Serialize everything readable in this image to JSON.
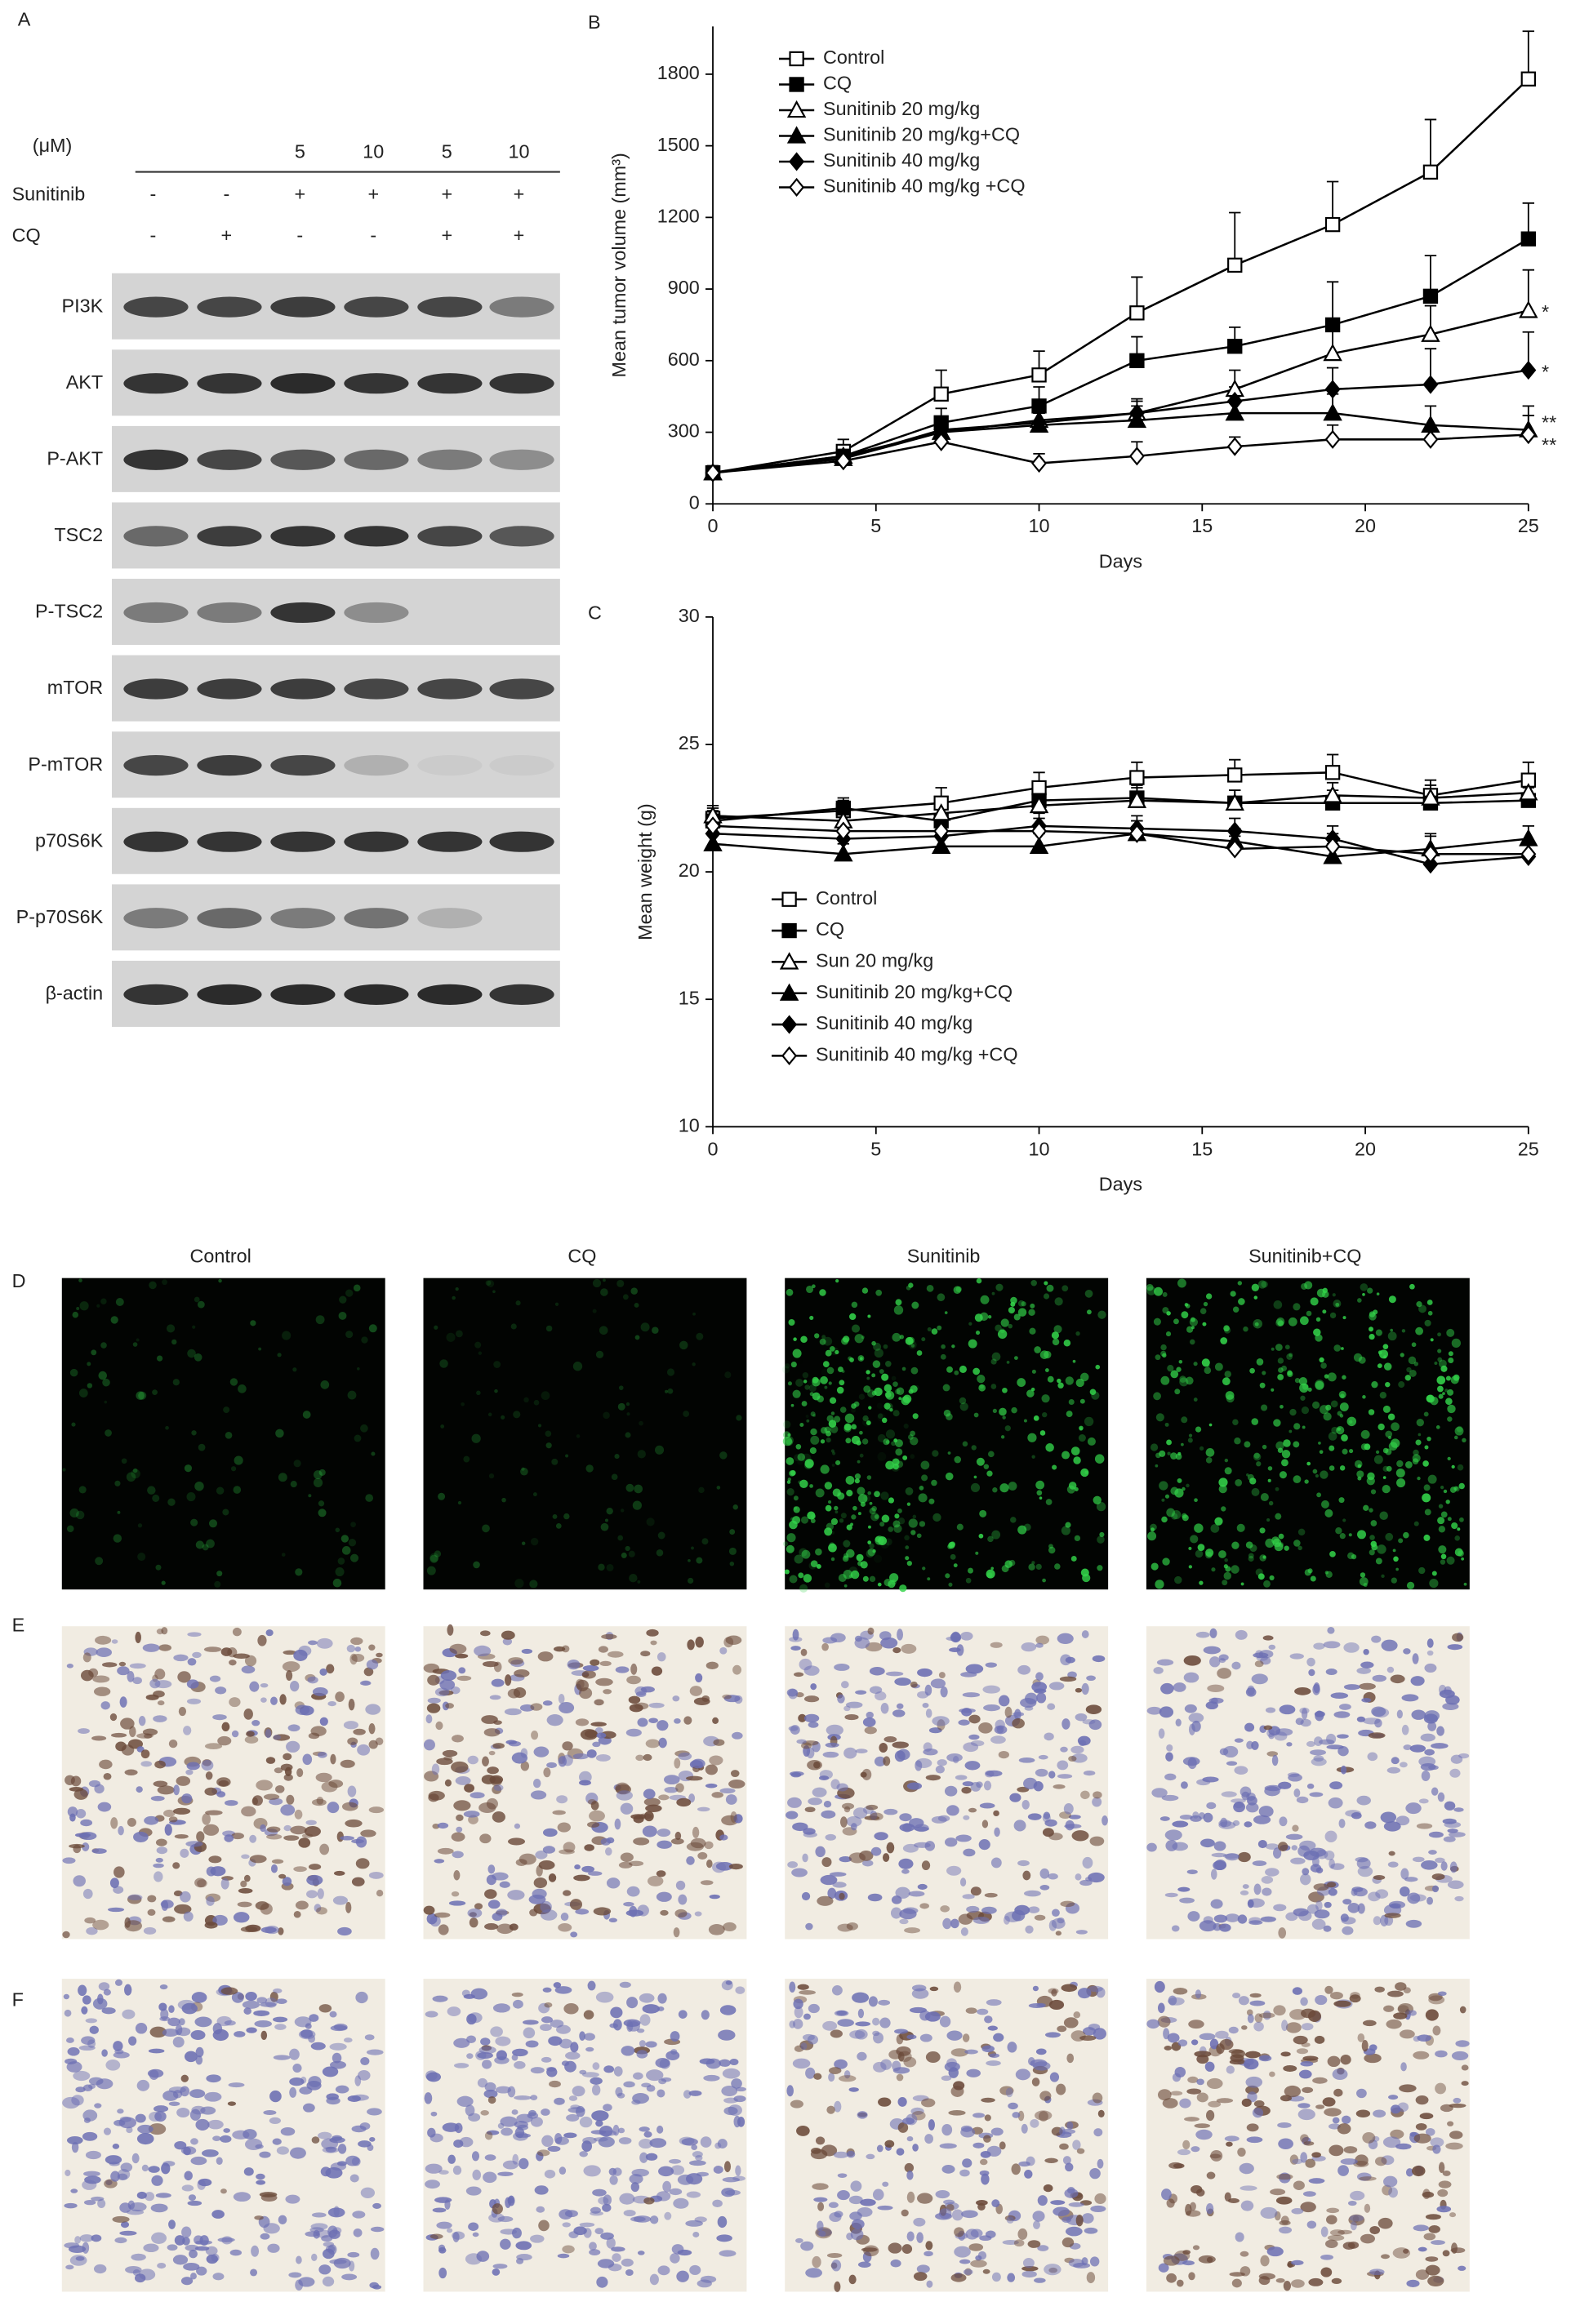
{
  "panel_a": {
    "label": "A",
    "unit": "(μM)",
    "doses": [
      "5",
      "10",
      "5",
      "10"
    ],
    "treatments": [
      {
        "name": "Sunitinib",
        "signs": [
          "-",
          "-",
          "+",
          "+",
          "+",
          "+"
        ]
      },
      {
        "name": "CQ",
        "signs": [
          "-",
          "+",
          "-",
          "-",
          "+",
          "+"
        ]
      }
    ],
    "proteins": [
      "PI3K",
      "AKT",
      "P-AKT",
      "TSC2",
      "P-TSC2",
      "mTOR",
      "P-mTOR",
      "p70S6K",
      "P-p70S6K",
      "β-actin"
    ]
  },
  "chart_data": [
    {
      "type": "line",
      "panel_label": "B",
      "x_label": "Days",
      "y_label": "Mean tumor volume (mm³)",
      "x": [
        0,
        4,
        7,
        10,
        13,
        16,
        19,
        22,
        25
      ],
      "xlim": [
        0,
        25
      ],
      "xticks": [
        0,
        5,
        10,
        15,
        20,
        25
      ],
      "ylim": [
        0,
        2000
      ],
      "yticks": [
        0,
        300,
        600,
        900,
        1200,
        1500,
        1800
      ],
      "legend": "upper left",
      "annotations": [
        "*",
        "*",
        "**",
        "**"
      ],
      "series": [
        {
          "name": "Control",
          "color": "#000000",
          "marker": "square-open",
          "values": [
            130,
            220,
            460,
            540,
            800,
            1000,
            1170,
            1390,
            1780
          ],
          "errors": [
            30,
            50,
            100,
            100,
            150,
            220,
            180,
            220,
            200
          ]
        },
        {
          "name": "CQ",
          "color": "#000000",
          "marker": "square-filled",
          "values": [
            130,
            200,
            340,
            410,
            600,
            660,
            750,
            870,
            1110
          ],
          "errors": [
            20,
            40,
            60,
            80,
            100,
            80,
            180,
            170,
            150
          ]
        },
        {
          "name": "Sunitinib 20 mg/kg",
          "color": "#000000",
          "marker": "triangle-open",
          "values": [
            130,
            200,
            300,
            350,
            380,
            480,
            630,
            710,
            810
          ],
          "errors": [
            20,
            30,
            40,
            50,
            60,
            80,
            100,
            120,
            170
          ]
        },
        {
          "name": "Sunitinib 20 mg/kg+CQ",
          "color": "#000000",
          "marker": "triangle-filled",
          "values": [
            130,
            190,
            300,
            330,
            350,
            380,
            380,
            330,
            310
          ],
          "errors": [
            20,
            30,
            40,
            50,
            60,
            70,
            80,
            80,
            100
          ]
        },
        {
          "name": "Sunitinib 40 mg/kg",
          "color": "#000000",
          "marker": "diamond-filled",
          "values": [
            130,
            190,
            310,
            340,
            380,
            430,
            480,
            500,
            560
          ],
          "errors": [
            20,
            30,
            40,
            40,
            50,
            60,
            90,
            150,
            160
          ]
        },
        {
          "name": "Sunitinib 40 mg/kg +CQ",
          "color": "#000000",
          "marker": "diamond-open",
          "values": [
            130,
            180,
            260,
            170,
            200,
            240,
            270,
            270,
            290
          ],
          "errors": [
            20,
            30,
            30,
            40,
            60,
            40,
            60,
            60,
            80
          ]
        }
      ]
    },
    {
      "type": "line",
      "panel_label": "C",
      "x_label": "Days",
      "y_label": "Mean weight (g)",
      "x": [
        0,
        4,
        7,
        10,
        13,
        16,
        19,
        22,
        25
      ],
      "xlim": [
        0,
        25
      ],
      "xticks": [
        0,
        5,
        10,
        15,
        20,
        25
      ],
      "ylim": [
        10,
        30
      ],
      "yticks": [
        10,
        15,
        20,
        25,
        30
      ],
      "legend": "lower left",
      "series": [
        {
          "name": "Control",
          "color": "#000000",
          "marker": "square-open",
          "values": [
            22.1,
            22.4,
            22.7,
            23.3,
            23.7,
            23.8,
            23.9,
            23.0,
            23.6
          ],
          "errors": [
            0.4,
            0.4,
            0.6,
            0.6,
            0.6,
            0.6,
            0.7,
            0.6,
            0.7
          ]
        },
        {
          "name": "CQ",
          "color": "#000000",
          "marker": "square-filled",
          "values": [
            22.0,
            22.5,
            22.0,
            22.8,
            22.9,
            22.7,
            22.7,
            22.7,
            22.8
          ],
          "errors": [
            0.4,
            0.4,
            0.5,
            0.5,
            0.5,
            0.5,
            0.5,
            0.5,
            0.5
          ]
        },
        {
          "name": "Sun 20 mg/kg",
          "color": "#000000",
          "marker": "triangle-open",
          "values": [
            22.2,
            22.0,
            22.3,
            22.6,
            22.8,
            22.7,
            23.0,
            22.9,
            23.1
          ],
          "errors": [
            0.4,
            0.4,
            0.5,
            0.5,
            0.5,
            0.5,
            0.5,
            0.5,
            0.5
          ]
        },
        {
          "name": "Sunitinib 20 mg/kg+CQ",
          "color": "#000000",
          "marker": "triangle-filled",
          "values": [
            21.1,
            20.7,
            21.0,
            21.0,
            21.5,
            21.2,
            20.6,
            20.9,
            21.3
          ],
          "errors": [
            0.4,
            0.4,
            0.5,
            0.5,
            0.5,
            0.5,
            0.5,
            0.5,
            0.5
          ]
        },
        {
          "name": "Sunitinib 40 mg/kg",
          "color": "#000000",
          "marker": "diamond-filled",
          "values": [
            21.5,
            21.3,
            21.4,
            21.8,
            21.7,
            21.6,
            21.3,
            20.3,
            20.6
          ],
          "errors": [
            0.4,
            0.4,
            0.5,
            0.5,
            0.5,
            0.5,
            0.5,
            0.5,
            0.5
          ]
        },
        {
          "name": "Sunitinib 40 mg/kg +CQ",
          "color": "#000000",
          "marker": "diamond-open",
          "values": [
            21.8,
            21.6,
            21.6,
            21.6,
            21.5,
            20.9,
            21.0,
            20.7,
            20.7
          ],
          "errors": [
            0.4,
            0.4,
            0.5,
            0.5,
            0.5,
            0.5,
            0.5,
            0.8,
            0.5
          ]
        }
      ]
    }
  ],
  "panel_d": {
    "label": "D",
    "columns": [
      "Control",
      "CQ",
      "Sunitinib",
      "Sunitinib+CQ"
    ]
  },
  "panel_e": {
    "label": "E"
  },
  "panel_f": {
    "label": "F"
  }
}
